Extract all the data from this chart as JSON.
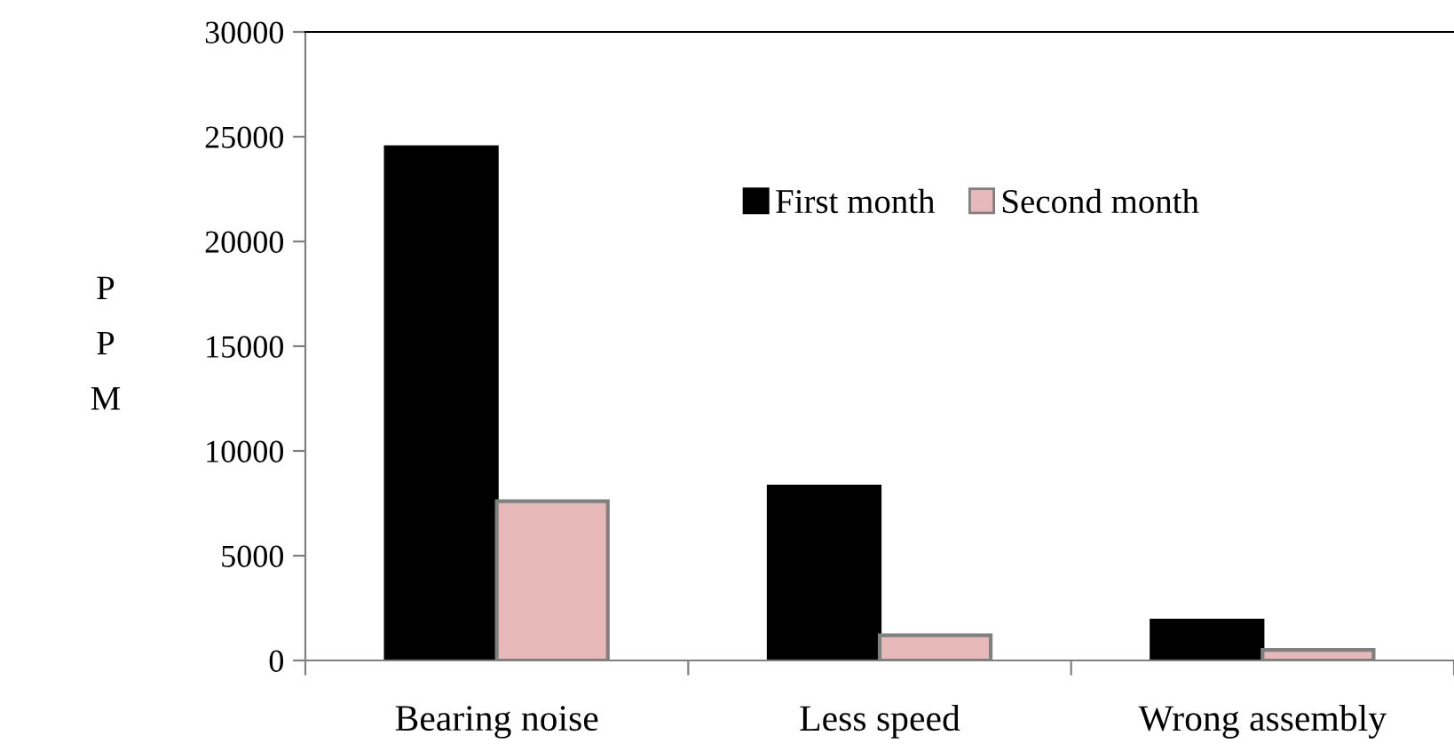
{
  "chart_data": {
    "type": "bar",
    "ylabel": "P\nP\nM",
    "categories": [
      "Bearing noise",
      "Less speed",
      "Wrong assembly"
    ],
    "series": [
      {
        "name": "First month",
        "color": "#000000",
        "values": [
          24500,
          8300,
          1900
        ]
      },
      {
        "name": "Second month",
        "color": "#e6b8b7",
        "values": [
          7600,
          1200,
          500
        ]
      }
    ],
    "ylim": [
      0,
      30000
    ],
    "yticks": [
      0,
      5000,
      10000,
      15000,
      20000,
      25000,
      30000
    ],
    "grid": false,
    "legend": "top"
  }
}
